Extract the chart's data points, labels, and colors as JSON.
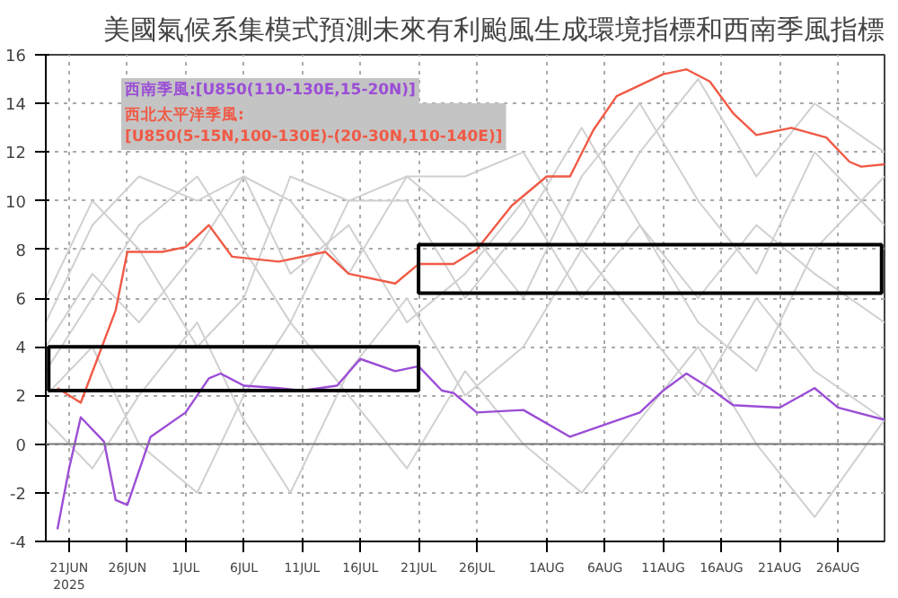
{
  "chart_data": {
    "type": "line",
    "title": "美國氣候系集模式預測未來有利颱風生成環境指標和西南季風指標",
    "xlim": [
      "2025-06-19",
      "2025-08-30"
    ],
    "xticks": [
      {
        "value": "2025-06-21",
        "label": "21JUN\n2025"
      },
      {
        "value": "2025-06-26",
        "label": "26JUN"
      },
      {
        "value": "2025-07-01",
        "label": "1JUL"
      },
      {
        "value": "2025-07-06",
        "label": "6JUL"
      },
      {
        "value": "2025-07-11",
        "label": "11JUL"
      },
      {
        "value": "2025-07-16",
        "label": "16JUL"
      },
      {
        "value": "2025-07-21",
        "label": "21JUL"
      },
      {
        "value": "2025-07-26",
        "label": "26JUL"
      },
      {
        "value": "2025-08-01",
        "label": "1AUG"
      },
      {
        "value": "2025-08-06",
        "label": "6AUG"
      },
      {
        "value": "2025-08-11",
        "label": "11AUG"
      },
      {
        "value": "2025-08-16",
        "label": "16AUG"
      },
      {
        "value": "2025-08-21",
        "label": "21AUG"
      },
      {
        "value": "2025-08-26",
        "label": "26AUG"
      }
    ],
    "ylim": [
      -4,
      16
    ],
    "yticks": [
      -4,
      -2,
      0,
      2,
      4,
      6,
      8,
      10,
      12,
      14,
      16
    ],
    "grid": true,
    "legend": "top left",
    "ref_lines": [
      {
        "axis": "y",
        "value": 0,
        "color": "#777777"
      }
    ],
    "series": [
      {
        "color": "#d0d0d0",
        "x": [
          "2025-06-19",
          "2025-06-23",
          "2025-06-27",
          "2025-07-02",
          "2025-07-06",
          "2025-07-10",
          "2025-07-15",
          "2025-07-20",
          "2025-07-25",
          "2025-07-30",
          "2025-08-04",
          "2025-08-09",
          "2025-08-14",
          "2025-08-19",
          "2025-08-24",
          "2025-08-30"
        ],
        "values": [
          3,
          6,
          9,
          11,
          8,
          5,
          10,
          11,
          9,
          6,
          11,
          14,
          10,
          7,
          12,
          9
        ]
      },
      {
        "color": "#d0d0d0",
        "x": [
          "2025-06-19",
          "2025-06-23",
          "2025-06-27",
          "2025-07-02",
          "2025-07-06",
          "2025-07-10",
          "2025-07-15",
          "2025-07-20",
          "2025-07-25",
          "2025-07-30",
          "2025-08-04",
          "2025-08-09",
          "2025-08-14",
          "2025-08-19",
          "2025-08-24",
          "2025-08-30"
        ],
        "values": [
          1,
          -1,
          2,
          5,
          1,
          -2,
          3,
          6,
          2,
          4,
          8,
          5,
          2,
          6,
          3,
          1
        ]
      },
      {
        "color": "#d0d0d0",
        "x": [
          "2025-06-19",
          "2025-06-23",
          "2025-06-27",
          "2025-07-02",
          "2025-07-06",
          "2025-07-10",
          "2025-07-15",
          "2025-07-20",
          "2025-07-25",
          "2025-07-30",
          "2025-08-04",
          "2025-08-09",
          "2025-08-14",
          "2025-08-19",
          "2025-08-24",
          "2025-08-30"
        ],
        "values": [
          5,
          9,
          11,
          10,
          11,
          10,
          7,
          11,
          11,
          12,
          8,
          12,
          15,
          11,
          14,
          12
        ]
      },
      {
        "color": "#d0d0d0",
        "x": [
          "2025-06-19",
          "2025-06-23",
          "2025-06-27",
          "2025-07-02",
          "2025-07-06",
          "2025-07-10",
          "2025-07-15",
          "2025-07-20",
          "2025-07-25",
          "2025-07-30",
          "2025-08-04",
          "2025-08-09",
          "2025-08-14",
          "2025-08-19",
          "2025-08-24",
          "2025-08-30"
        ],
        "values": [
          2,
          4,
          0,
          -2,
          2,
          5,
          2,
          -1,
          3,
          0,
          -2,
          1,
          4,
          0,
          -3,
          1
        ]
      },
      {
        "color": "#d0d0d0",
        "x": [
          "2025-06-19",
          "2025-06-23",
          "2025-06-27",
          "2025-07-02",
          "2025-07-06",
          "2025-07-10",
          "2025-07-15",
          "2025-07-20",
          "2025-07-25",
          "2025-07-30",
          "2025-08-04",
          "2025-08-09",
          "2025-08-14",
          "2025-08-19",
          "2025-08-24",
          "2025-08-30"
        ],
        "values": [
          4,
          7,
          5,
          8,
          11,
          7,
          9,
          5,
          7,
          10,
          6,
          9,
          6,
          9,
          7,
          5
        ]
      },
      {
        "color": "#d0d0d0",
        "x": [
          "2025-06-19",
          "2025-06-23",
          "2025-06-27",
          "2025-07-02",
          "2025-07-06",
          "2025-07-10",
          "2025-07-15",
          "2025-07-20",
          "2025-07-25",
          "2025-07-30",
          "2025-08-04",
          "2025-08-09",
          "2025-08-14",
          "2025-08-19",
          "2025-08-24",
          "2025-08-30"
        ],
        "values": [
          6,
          10,
          8,
          4,
          6,
          11,
          10,
          10,
          6,
          9,
          13,
          9,
          5,
          3,
          8,
          11
        ]
      },
      {
        "name": "西南季風:[U850(110-130E,15-20N)]",
        "color": "#9b4dd6",
        "x": [
          "2025-06-20",
          "2025-06-21",
          "2025-06-22",
          "2025-06-24",
          "2025-06-25",
          "2025-06-26",
          "2025-06-28",
          "2025-07-01",
          "2025-07-03",
          "2025-07-04",
          "2025-07-06",
          "2025-07-09",
          "2025-07-11",
          "2025-07-14",
          "2025-07-16",
          "2025-07-19",
          "2025-07-21",
          "2025-07-23",
          "2025-07-24",
          "2025-07-26",
          "2025-07-30",
          "2025-08-03",
          "2025-08-06",
          "2025-08-09",
          "2025-08-11",
          "2025-08-13",
          "2025-08-15",
          "2025-08-17",
          "2025-08-21",
          "2025-08-24",
          "2025-08-26",
          "2025-08-30"
        ],
        "values": [
          -3.5,
          -1.0,
          1.1,
          0.1,
          -2.3,
          -2.5,
          0.3,
          1.3,
          2.7,
          2.9,
          2.4,
          2.3,
          2.2,
          2.4,
          3.5,
          3.0,
          3.2,
          2.2,
          2.1,
          1.3,
          1.4,
          0.3,
          0.8,
          1.3,
          2.2,
          2.9,
          2.3,
          1.6,
          1.5,
          2.3,
          1.5,
          1.0
        ]
      },
      {
        "name": "西北太平洋季風:\n[U850(5-15N,100-130E)-(20-30N,110-140E)]",
        "color": "#f05a46",
        "x": [
          "2025-06-20",
          "2025-06-22",
          "2025-06-25",
          "2025-06-26",
          "2025-06-29",
          "2025-07-01",
          "2025-07-03",
          "2025-07-05",
          "2025-07-09",
          "2025-07-13",
          "2025-07-15",
          "2025-07-19",
          "2025-07-21",
          "2025-07-24",
          "2025-07-26",
          "2025-07-29",
          "2025-08-01",
          "2025-08-03",
          "2025-08-05",
          "2025-08-07",
          "2025-08-11",
          "2025-08-13",
          "2025-08-15",
          "2025-08-17",
          "2025-08-19",
          "2025-08-22",
          "2025-08-25",
          "2025-08-27",
          "2025-08-28",
          "2025-08-30"
        ],
        "values": [
          2.3,
          1.7,
          5.5,
          7.9,
          7.9,
          8.1,
          9.0,
          7.7,
          7.5,
          7.9,
          7.0,
          6.6,
          7.4,
          7.4,
          8.0,
          9.8,
          11.0,
          11.0,
          12.9,
          14.3,
          15.2,
          15.4,
          14.9,
          13.6,
          12.7,
          13.0,
          12.6,
          11.6,
          11.4,
          11.5
        ]
      }
    ]
  }
}
